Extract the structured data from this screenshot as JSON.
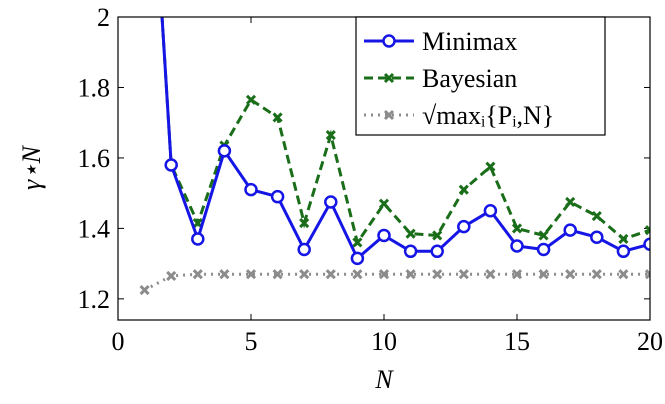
{
  "chart_data": {
    "type": "line",
    "xlabel": "N",
    "ylabel": "γ⋆N",
    "x": [
      1,
      2,
      3,
      4,
      5,
      6,
      7,
      8,
      9,
      10,
      11,
      12,
      13,
      14,
      15,
      16,
      17,
      18,
      19,
      20
    ],
    "series": [
      {
        "name": "Minimax",
        "color": "#1515e6",
        "style": "solid",
        "marker": "circle",
        "values": [
          2.8,
          1.58,
          1.37,
          1.62,
          1.51,
          1.49,
          1.34,
          1.475,
          1.315,
          1.38,
          1.335,
          1.335,
          1.405,
          1.45,
          1.35,
          1.34,
          1.395,
          1.375,
          1.335,
          1.355
        ]
      },
      {
        "name": "Bayesian",
        "color": "#1a6e1a",
        "style": "dashed",
        "marker": "cross",
        "values": [
          2.8,
          1.58,
          1.415,
          1.635,
          1.765,
          1.715,
          1.415,
          1.665,
          1.36,
          1.47,
          1.385,
          1.38,
          1.51,
          1.575,
          1.4,
          1.38,
          1.475,
          1.435,
          1.37,
          1.395
        ]
      },
      {
        "name": "√maxᵢ{Pᵢ,N}",
        "color": "#8c8c8c",
        "style": "dotted",
        "marker": "cross",
        "values": [
          1.225,
          1.265,
          1.27,
          1.27,
          1.27,
          1.27,
          1.27,
          1.27,
          1.27,
          1.27,
          1.27,
          1.27,
          1.27,
          1.27,
          1.27,
          1.27,
          1.27,
          1.27,
          1.27,
          1.27
        ]
      }
    ],
    "xlim": [
      0,
      20
    ],
    "xticks": [
      0,
      5,
      10,
      15,
      20
    ],
    "ylim": [
      1.14,
      2
    ],
    "yticks": [
      1.2,
      1.4,
      1.6,
      1.8,
      2
    ],
    "legend": "top-right"
  }
}
